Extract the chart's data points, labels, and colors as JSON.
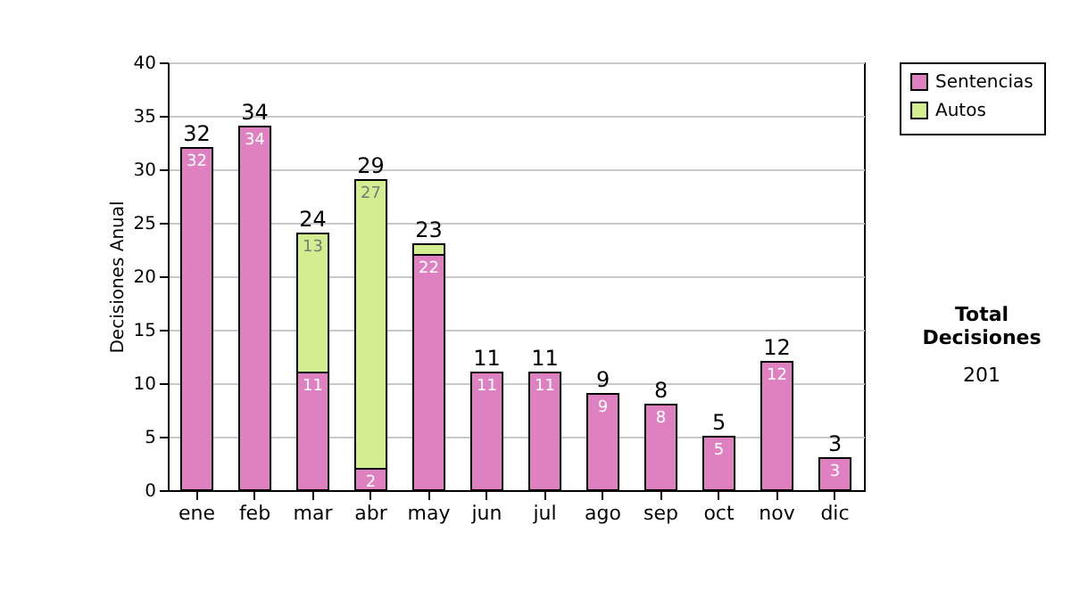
{
  "chart_data": {
    "type": "bar",
    "stacked": true,
    "ylabel": "Decisiones Anual",
    "categories": [
      "ene",
      "feb",
      "mar",
      "abr",
      "may",
      "jun",
      "jul",
      "ago",
      "sep",
      "oct",
      "nov",
      "dic"
    ],
    "series": [
      {
        "name": "Sentencias",
        "color": "#df80c0",
        "values": [
          32,
          34,
          11,
          2,
          22,
          11,
          11,
          9,
          8,
          5,
          12,
          3
        ],
        "value_labels": [
          "32",
          "34",
          "11",
          "2",
          "22",
          "11",
          "11",
          "9",
          "8",
          "5",
          "12",
          "3"
        ]
      },
      {
        "name": "Autos",
        "color": "#d3ee90",
        "values": [
          null,
          null,
          13,
          27,
          1,
          null,
          null,
          null,
          null,
          null,
          null,
          null
        ],
        "value_labels": [
          null,
          null,
          "13",
          "27",
          null,
          null,
          null,
          null,
          null,
          null,
          null,
          null
        ]
      }
    ],
    "totals": [
      "32",
      "34",
      "24",
      "29",
      "23",
      "11",
      "11",
      "9",
      "8",
      "5",
      "12",
      "3"
    ],
    "ylim": [
      0,
      40
    ],
    "yticks": [
      0,
      5,
      10,
      15,
      20,
      25,
      30,
      35,
      40
    ],
    "grid": "y",
    "legend": "right",
    "annotations": [
      "Total Decisiones",
      "201"
    ]
  }
}
